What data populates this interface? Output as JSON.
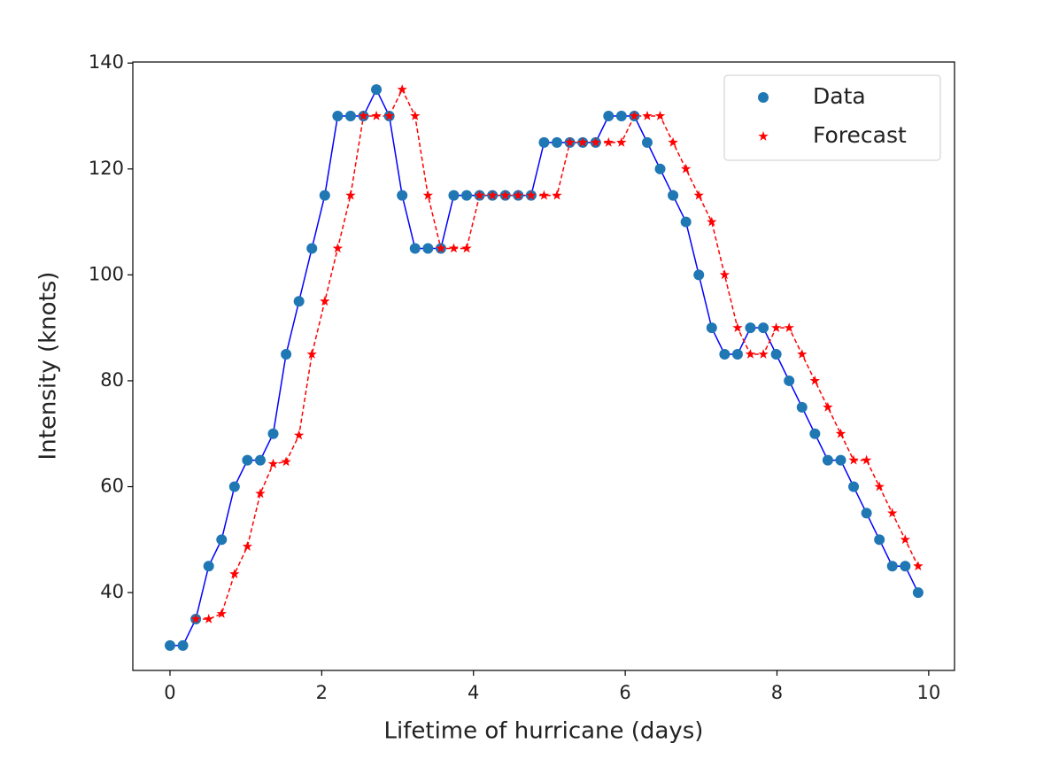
{
  "chart_data": {
    "type": "line",
    "xlabel": "Lifetime of hurricane (days)",
    "ylabel": "Intensity (knots)",
    "x": [
      0,
      0.17,
      0.34,
      0.51,
      0.68,
      0.85,
      1.02,
      1.19,
      1.36,
      1.53,
      1.7,
      1.87,
      2.04,
      2.21,
      2.38,
      2.55,
      2.72,
      2.89,
      3.06,
      3.23,
      3.4,
      3.57,
      3.74,
      3.91,
      4.08,
      4.25,
      4.42,
      4.59,
      4.76,
      4.93,
      5.1,
      5.27,
      5.44,
      5.61,
      5.78,
      5.95,
      6.12,
      6.29,
      6.46,
      6.63,
      6.8,
      6.97,
      7.14,
      7.31,
      7.48,
      7.65,
      7.82,
      7.99,
      8.16,
      8.33,
      8.5,
      8.67,
      8.84,
      9.01,
      9.18,
      9.35,
      9.52,
      9.69,
      9.86
    ],
    "series": [
      {
        "name": "Data",
        "color": "#1f77b4",
        "line_color": "#0000ff",
        "marker": "circle",
        "line_style": "solid",
        "values": [
          30,
          30,
          35,
          45,
          50,
          60,
          65,
          65,
          70,
          85,
          95,
          105,
          115,
          130,
          130,
          130,
          135,
          130,
          115,
          105,
          105,
          105,
          115,
          115,
          115,
          115,
          115,
          115,
          115,
          125,
          125,
          125,
          125,
          125,
          130,
          130,
          130,
          125,
          120,
          115,
          110,
          100,
          90,
          85,
          85,
          90,
          90,
          85,
          80,
          75,
          70,
          65,
          65,
          60,
          55,
          50,
          45,
          45,
          40
        ]
      },
      {
        "name": "Forecast",
        "color": "#ff0000",
        "line_color": "#ff0000",
        "marker": "star",
        "line_style": "dashed",
        "values": [
          null,
          null,
          35,
          35,
          36,
          43.5,
          48.7,
          58.7,
          64.3,
          64.7,
          69.7,
          85,
          95,
          105,
          115,
          130,
          130,
          130,
          135,
          130,
          115,
          105,
          105,
          105,
          115,
          115,
          115,
          115,
          115,
          115,
          115,
          125,
          125,
          125,
          125,
          125,
          130,
          130,
          130,
          125,
          120,
          115,
          110,
          100,
          90,
          85,
          85,
          90,
          90,
          85,
          80,
          75,
          70,
          65,
          65,
          60,
          55,
          50,
          45
        ]
      }
    ],
    "xlim": [
      -0.49,
      10.34
    ],
    "ylim": [
      25.3,
      140.2
    ],
    "xticks": [
      0,
      2,
      4,
      6,
      8,
      10
    ],
    "yticks": [
      40,
      60,
      80,
      100,
      120,
      140
    ],
    "legend": "upper right",
    "grid": false
  }
}
